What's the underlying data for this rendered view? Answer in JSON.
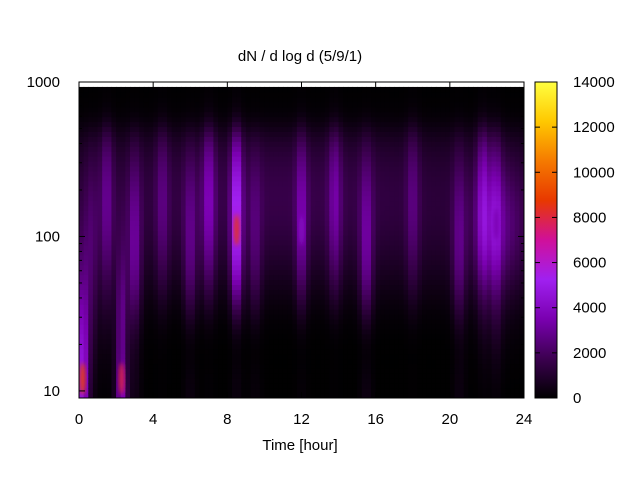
{
  "chart_data": {
    "type": "heatmap",
    "title": "dN / d log d (5/9/1)",
    "xlabel": "Time [hour]",
    "ylabel": "",
    "xlim": [
      0,
      24
    ],
    "ylim": [
      9,
      1000
    ],
    "y_scale": "log",
    "x_ticks": [
      "0",
      "4",
      "8",
      "12",
      "16",
      "20",
      "24"
    ],
    "y_ticks": [
      "10",
      "100",
      "1000"
    ],
    "colorbar": {
      "range": [
        0,
        14000
      ],
      "ticks": [
        "0",
        "2000",
        "4000",
        "6000",
        "8000",
        "10000",
        "12000",
        "14000"
      ],
      "colors": [
        "#000000",
        "#3c0050",
        "#7a00b0",
        "#a020f0",
        "#d0109a",
        "#e83800",
        "#f57a00",
        "#ffc800",
        "#ffff40"
      ]
    },
    "series": [
      {
        "time_hour": 0.2,
        "peak_diameter": 12,
        "value": 9000
      },
      {
        "time_hour": 2.3,
        "peak_diameter": 12,
        "value": 8000
      },
      {
        "time_hour": 8.5,
        "peak_diameter": 110,
        "value": 8500
      },
      {
        "time_hour": 12.0,
        "peak_diameter": 110,
        "value": 4000
      },
      {
        "time_hour": 22.5,
        "peak_diameter": 120,
        "value": 3500
      }
    ],
    "grid": false
  }
}
